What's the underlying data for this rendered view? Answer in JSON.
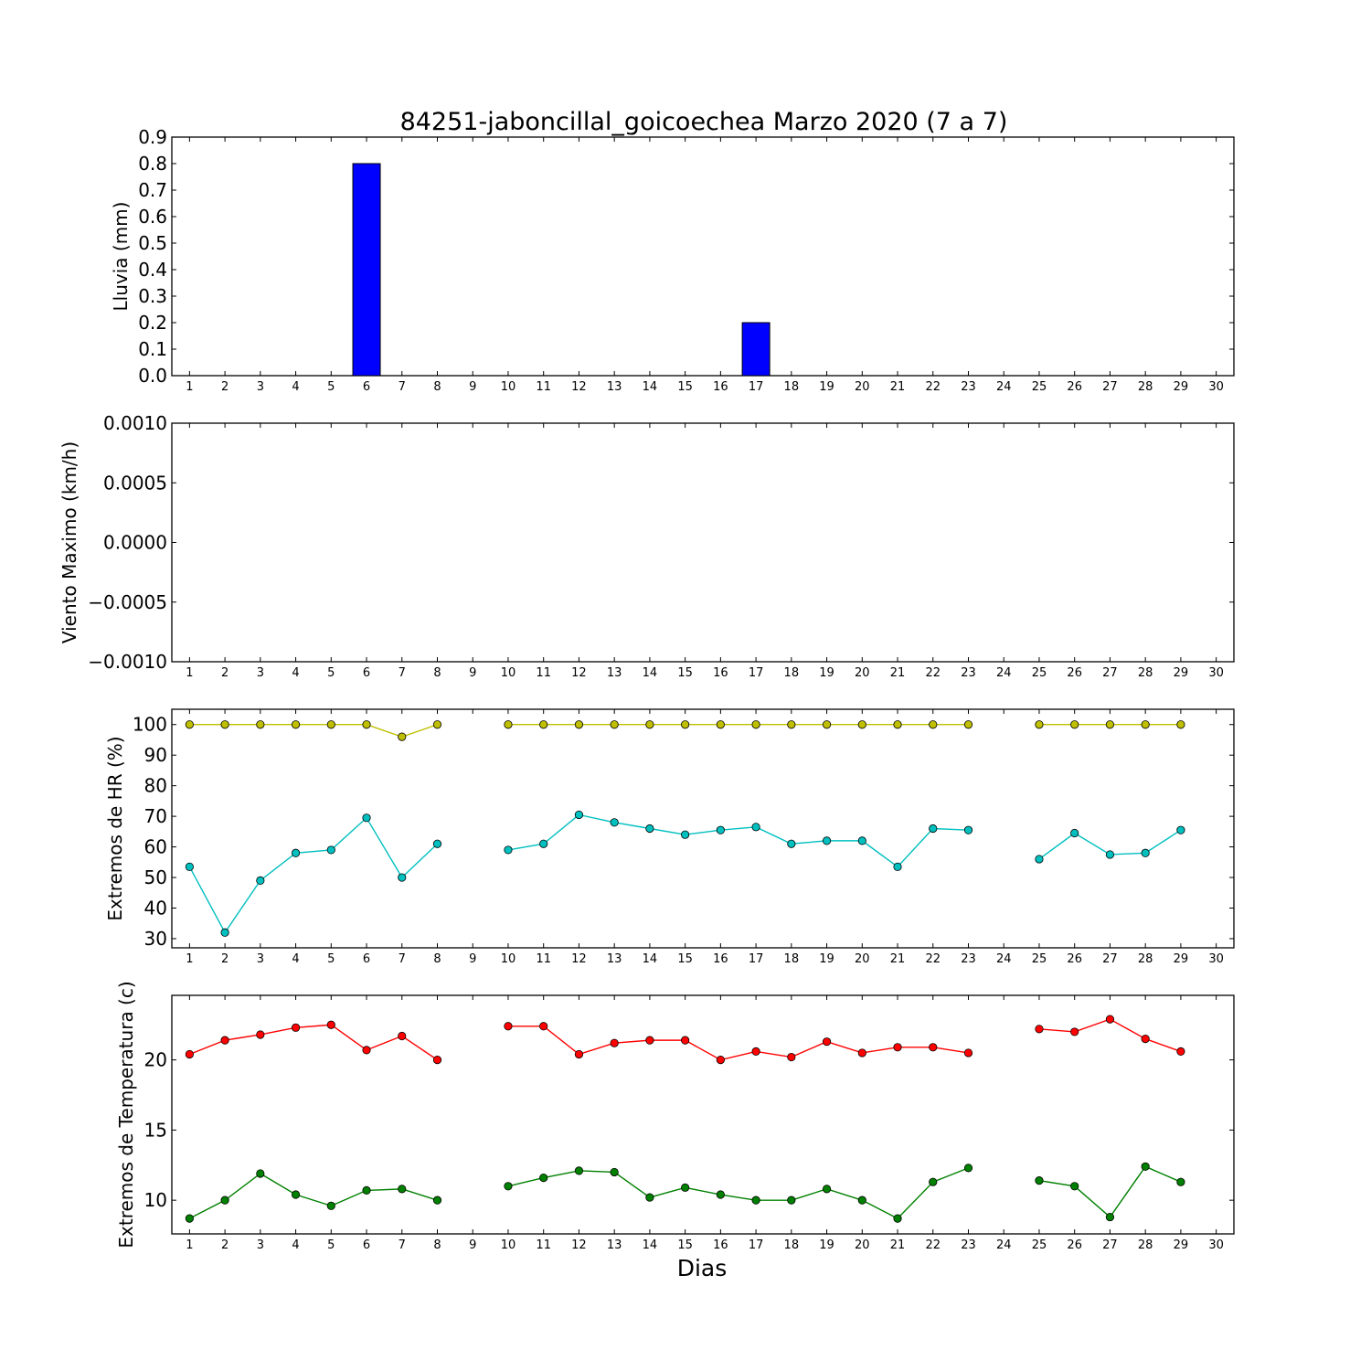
{
  "title": "84251-jaboncillal_goicoechea Marzo 2020  (7 a 7)",
  "xlabel": "Dias",
  "colors": {
    "rain_bar": "#0000ff",
    "hr_max": "#bfbf00",
    "hr_min": "#00bfbf",
    "temp_max": "#ff0000",
    "temp_min": "#008000"
  },
  "chart_data": [
    {
      "type": "bar",
      "ylabel": "Lluvia (mm)",
      "ylim": [
        0,
        0.9
      ],
      "yticks": [
        "0.0",
        "0.1",
        "0.2",
        "0.3",
        "0.4",
        "0.5",
        "0.6",
        "0.7",
        "0.8",
        "0.9"
      ],
      "categories": [
        "1",
        "2",
        "3",
        "4",
        "5",
        "6",
        "7",
        "8",
        "9",
        "10",
        "11",
        "12",
        "13",
        "14",
        "15",
        "16",
        "17",
        "18",
        "19",
        "20",
        "21",
        "22",
        "23",
        "24",
        "25",
        "26",
        "27",
        "28",
        "29",
        "30"
      ],
      "values": [
        0,
        0,
        0,
        0,
        0,
        0.8,
        0,
        0,
        0,
        0,
        0,
        0,
        0,
        0,
        0,
        0,
        0.2,
        0,
        0,
        0,
        0,
        0,
        0,
        0,
        0,
        0,
        0,
        0,
        0,
        0
      ]
    },
    {
      "type": "line",
      "ylabel": "Viento Maximo (km/h)",
      "ylim": [
        -0.001,
        0.001
      ],
      "yticks": [
        "−0.0010",
        "−0.0005",
        "0.0000",
        "0.0005",
        "0.0010"
      ],
      "categories": [
        "1",
        "2",
        "3",
        "4",
        "5",
        "6",
        "7",
        "8",
        "9",
        "10",
        "11",
        "12",
        "13",
        "14",
        "15",
        "16",
        "17",
        "18",
        "19",
        "20",
        "21",
        "22",
        "23",
        "24",
        "25",
        "26",
        "27",
        "28",
        "29",
        "30"
      ],
      "series": []
    },
    {
      "type": "line",
      "ylabel": "Extremos de HR (%)",
      "ylim": [
        27,
        105
      ],
      "yticks": [
        "30",
        "40",
        "50",
        "60",
        "70",
        "80",
        "90",
        "100"
      ],
      "categories": [
        "1",
        "2",
        "3",
        "4",
        "5",
        "6",
        "7",
        "8",
        "9",
        "10",
        "11",
        "12",
        "13",
        "14",
        "15",
        "16",
        "17",
        "18",
        "19",
        "20",
        "21",
        "22",
        "23",
        "24",
        "25",
        "26",
        "27",
        "28",
        "29",
        "30"
      ],
      "series": [
        {
          "values": [
            100,
            100,
            100,
            100,
            100,
            100,
            96,
            100,
            null,
            100,
            100,
            100,
            100,
            100,
            100,
            100,
            100,
            100,
            100,
            100,
            100,
            100,
            100,
            null,
            100,
            100,
            100,
            100,
            100,
            null
          ]
        },
        {
          "values": [
            53.5,
            32,
            49,
            58,
            59,
            69.5,
            50,
            61,
            null,
            59,
            61,
            70.5,
            68,
            66,
            64,
            65.5,
            66.5,
            61,
            62,
            62,
            53.5,
            66,
            65.5,
            null,
            56,
            64.5,
            57.5,
            58,
            65.5,
            null
          ]
        }
      ]
    },
    {
      "type": "line",
      "ylabel": "Extremos de Temperatura (c)",
      "ylim": [
        7.6,
        24.6
      ],
      "yticks": [
        "10",
        "15",
        "20"
      ],
      "categories": [
        "1",
        "2",
        "3",
        "4",
        "5",
        "6",
        "7",
        "8",
        "9",
        "10",
        "11",
        "12",
        "13",
        "14",
        "15",
        "16",
        "17",
        "18",
        "19",
        "20",
        "21",
        "22",
        "23",
        "24",
        "25",
        "26",
        "27",
        "28",
        "29",
        "30"
      ],
      "series": [
        {
          "values": [
            20.4,
            21.4,
            21.8,
            22.3,
            22.5,
            20.7,
            21.7,
            20.0,
            null,
            22.4,
            22.4,
            20.4,
            21.2,
            21.4,
            21.4,
            20.0,
            20.6,
            20.2,
            21.3,
            20.5,
            20.9,
            20.9,
            20.5,
            null,
            22.2,
            22.0,
            22.9,
            21.5,
            20.6,
            null
          ]
        },
        {
          "values": [
            8.7,
            10.0,
            11.9,
            10.4,
            9.6,
            10.7,
            10.8,
            10.0,
            null,
            11.0,
            11.6,
            12.1,
            12.0,
            10.2,
            10.9,
            10.4,
            10.0,
            10.0,
            10.8,
            10.0,
            8.7,
            11.3,
            12.3,
            null,
            11.4,
            11.0,
            8.8,
            12.4,
            11.3,
            null
          ]
        }
      ]
    }
  ]
}
